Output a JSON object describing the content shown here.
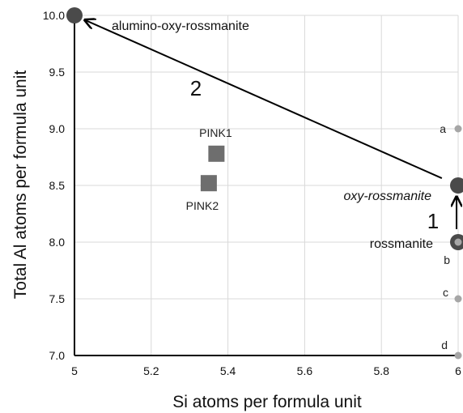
{
  "chart_data": {
    "type": "scatter",
    "title": "",
    "xlabel": "Si atoms per formula unit",
    "ylabel": "Total Al atoms per formula unit",
    "xlim": [
      5,
      6
    ],
    "ylim": [
      7,
      10
    ],
    "x_ticks": [
      "5",
      "5.2",
      "5.4",
      "5.6",
      "5.8",
      "6"
    ],
    "y_ticks": [
      "7.0",
      "7.5",
      "8.0",
      "8.5",
      "9.0",
      "9.5",
      "10.0"
    ],
    "grid": true,
    "series": [
      {
        "name": "",
        "marker": "circle",
        "points": [
          {
            "label": "alumino-oxy-rossmanite",
            "x": 5,
            "y": 10
          },
          {
            "label": "oxy-rossmanite",
            "x": 6,
            "y": 8.5
          },
          {
            "label": "rossmanite",
            "x": 6,
            "y": 8.0
          }
        ]
      },
      {
        "name": "",
        "marker": "square",
        "points": [
          {
            "label": "PINK1",
            "x": 5.37,
            "y": 8.78
          },
          {
            "label": "PINK2",
            "x": 5.35,
            "y": 8.52
          }
        ]
      },
      {
        "name": "",
        "marker": "small-circle",
        "points": [
          {
            "label": "a",
            "x": 6,
            "y": 9.0
          },
          {
            "label": "b",
            "x": 6,
            "y": 8.0
          },
          {
            "label": "c",
            "x": 6,
            "y": 7.5
          },
          {
            "label": "d",
            "x": 6,
            "y": 7.0
          }
        ]
      }
    ],
    "arrows": [
      {
        "label": "1",
        "from": {
          "x": 6,
          "y": 8.0
        },
        "to": {
          "x": 6,
          "y": 8.5
        }
      },
      {
        "label": "2",
        "from": {
          "x": 6,
          "y": 8.5
        },
        "to": {
          "x": 5,
          "y": 10
        }
      }
    ],
    "colors": {
      "large_marker": "#4a4a4a",
      "square_marker": "#6e6e6e",
      "small_marker": "#a6a6a6",
      "grid": "#d9d9d9",
      "axis": "#000000"
    }
  }
}
